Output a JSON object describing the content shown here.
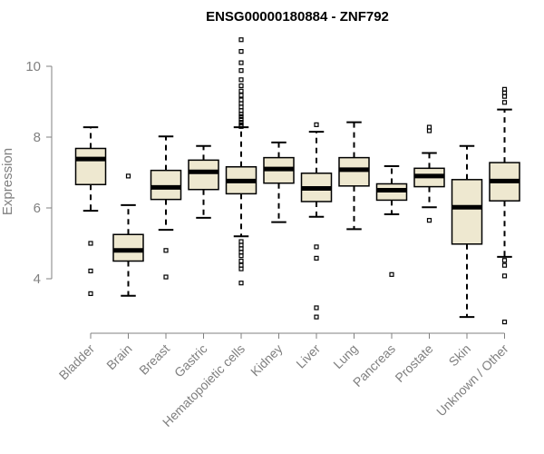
{
  "chart_data": {
    "type": "boxplot",
    "title": "ENSG00000180884 - ZNF792",
    "ylabel": "Expression",
    "xlabel": "",
    "ylim": [
      2.6,
      10.9
    ],
    "yticks": [
      4,
      6,
      8,
      10
    ],
    "box_fill": "#EEE8D0",
    "box_stroke": "#000000",
    "grid": false,
    "categories": [
      "Bladder",
      "Brain",
      "Breast",
      "Gastric",
      "Hematopoietic cells",
      "Kidney",
      "Liver",
      "Lung",
      "Pancreas",
      "Prostate",
      "Skin",
      "Unknown / Other"
    ],
    "boxes": [
      {
        "name": "Bladder",
        "min": 5.92,
        "q1": 6.66,
        "median": 7.38,
        "q3": 7.68,
        "max": 8.28,
        "outliers": [
          5.0,
          4.22,
          3.58
        ]
      },
      {
        "name": "Brain",
        "min": 3.52,
        "q1": 4.5,
        "median": 4.8,
        "q3": 5.25,
        "max": 6.08,
        "outliers": [
          6.9
        ]
      },
      {
        "name": "Breast",
        "min": 5.38,
        "q1": 6.24,
        "median": 6.58,
        "q3": 7.06,
        "max": 8.02,
        "outliers": [
          4.8,
          4.05
        ]
      },
      {
        "name": "Gastric",
        "min": 5.72,
        "q1": 6.52,
        "median": 7.02,
        "q3": 7.35,
        "max": 7.75,
        "outliers": []
      },
      {
        "name": "Hematopoietic cells",
        "min": 5.2,
        "q1": 6.4,
        "median": 6.76,
        "q3": 7.16,
        "max": 8.28,
        "outliers": [
          10.75,
          10.42,
          10.1,
          9.88,
          9.62,
          9.45,
          9.3,
          9.18,
          9.05,
          8.95,
          8.85,
          8.75,
          8.65,
          8.58,
          8.5,
          8.42,
          8.35,
          8.3,
          5.05,
          4.95,
          4.85,
          4.75,
          4.65,
          4.5,
          4.38,
          4.28,
          3.88
        ]
      },
      {
        "name": "Kidney",
        "min": 5.6,
        "q1": 6.7,
        "median": 7.1,
        "q3": 7.42,
        "max": 7.85,
        "outliers": []
      },
      {
        "name": "Liver",
        "min": 5.75,
        "q1": 6.18,
        "median": 6.55,
        "q3": 6.98,
        "max": 8.15,
        "outliers": [
          8.35,
          4.9,
          4.58,
          3.18,
          2.92
        ]
      },
      {
        "name": "Lung",
        "min": 5.4,
        "q1": 6.62,
        "median": 7.08,
        "q3": 7.42,
        "max": 8.42,
        "outliers": []
      },
      {
        "name": "Pancreas",
        "min": 5.82,
        "q1": 6.22,
        "median": 6.5,
        "q3": 6.68,
        "max": 7.18,
        "outliers": [
          4.12
        ]
      },
      {
        "name": "Prostate",
        "min": 6.02,
        "q1": 6.6,
        "median": 6.9,
        "q3": 7.12,
        "max": 7.55,
        "outliers": [
          8.28,
          8.18,
          5.65
        ]
      },
      {
        "name": "Skin",
        "min": 2.92,
        "q1": 4.98,
        "median": 6.02,
        "q3": 6.8,
        "max": 7.75,
        "outliers": []
      },
      {
        "name": "Unknown / Other",
        "min": 4.62,
        "q1": 6.2,
        "median": 6.76,
        "q3": 7.28,
        "max": 8.78,
        "outliers": [
          9.35,
          9.25,
          9.15,
          8.98,
          4.52,
          4.38,
          4.08,
          2.78
        ]
      }
    ]
  }
}
